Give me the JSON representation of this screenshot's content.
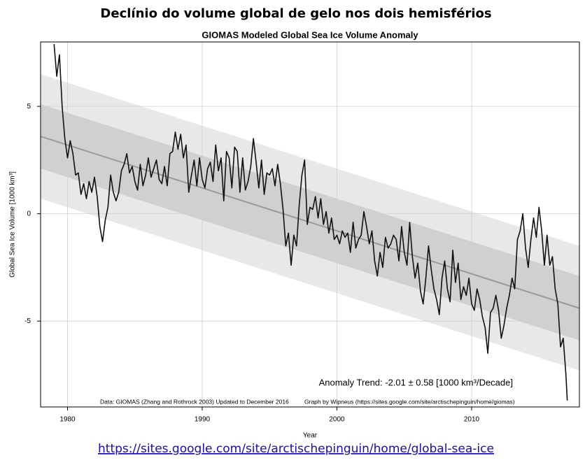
{
  "header_title": "Declínio do volume global de gelo nos dois hemisférios",
  "link": "https://sites.google.com/site/arctischepinguin/home/global-sea-ice",
  "chart_data": {
    "type": "line",
    "title": "GIOMAS Modeled Global Sea Ice Volume Anomaly",
    "xlabel": "Year",
    "ylabel": "Global Sea Ice Volume [1000 km³]",
    "annotation": "Anomaly Trend: -2.01 ± 0.58 [1000 km³/Decade]",
    "notes": [
      "Data: GIOMAS (Zhang and Rothrock 2003) Updated to December 2016",
      "Graph by Wipneus (https://sites.google.com/site/arctischepinguin/home/giomas)"
    ],
    "xlim": [
      1978,
      2018
    ],
    "xticks": [
      1980,
      1990,
      2000,
      2010
    ],
    "ylim": [
      -9,
      8
    ],
    "yticks": [
      -5,
      0,
      5
    ],
    "grid": true,
    "bands": [
      {
        "x": [
          1978,
          2018
        ],
        "lower": [
          0.7,
          -7.3
        ],
        "upper": [
          6.5,
          -1.5
        ],
        "color": "#e8e8e8"
      },
      {
        "x": [
          1978,
          2018
        ],
        "lower": [
          2.1,
          -5.9
        ],
        "upper": [
          5.1,
          -2.9
        ],
        "color": "#d0d0d0"
      }
    ],
    "trend": {
      "x": [
        1978,
        2018
      ],
      "values": [
        3.6,
        -4.4
      ],
      "color": "#9a9a9a"
    },
    "x": [
      1979.0,
      1979.2,
      1979.4,
      1979.6,
      1979.8,
      1980.0,
      1980.2,
      1980.4,
      1980.6,
      1980.8,
      1981.0,
      1981.2,
      1981.4,
      1981.6,
      1981.8,
      1982.0,
      1982.2,
      1982.4,
      1982.6,
      1982.8,
      1983.0,
      1983.2,
      1983.4,
      1983.6,
      1983.8,
      1984.0,
      1984.2,
      1984.4,
      1984.6,
      1984.8,
      1985.0,
      1985.2,
      1985.4,
      1985.6,
      1985.8,
      1986.0,
      1986.2,
      1986.4,
      1986.6,
      1986.8,
      1987.0,
      1987.2,
      1987.4,
      1987.6,
      1987.8,
      1988.0,
      1988.2,
      1988.4,
      1988.6,
      1988.8,
      1989.0,
      1989.2,
      1989.4,
      1989.6,
      1989.8,
      1990.0,
      1990.2,
      1990.4,
      1990.6,
      1990.8,
      1991.0,
      1991.2,
      1991.4,
      1991.6,
      1991.8,
      1992.0,
      1992.2,
      1992.4,
      1992.6,
      1992.8,
      1993.0,
      1993.2,
      1993.4,
      1993.6,
      1993.8,
      1994.0,
      1994.2,
      1994.4,
      1994.6,
      1994.8,
      1995.0,
      1995.2,
      1995.4,
      1995.6,
      1995.8,
      1996.0,
      1996.2,
      1996.4,
      1996.6,
      1996.8,
      1997.0,
      1997.2,
      1997.4,
      1997.6,
      1997.8,
      1998.0,
      1998.2,
      1998.4,
      1998.6,
      1998.8,
      1999.0,
      1999.2,
      1999.4,
      1999.6,
      1999.8,
      2000.0,
      2000.2,
      2000.4,
      2000.6,
      2000.8,
      2001.0,
      2001.2,
      2001.4,
      2001.6,
      2001.8,
      2002.0,
      2002.2,
      2002.4,
      2002.6,
      2002.8,
      2003.0,
      2003.2,
      2003.4,
      2003.6,
      2003.8,
      2004.0,
      2004.2,
      2004.4,
      2004.6,
      2004.8,
      2005.0,
      2005.2,
      2005.4,
      2005.6,
      2005.8,
      2006.0,
      2006.2,
      2006.4,
      2006.6,
      2006.8,
      2007.0,
      2007.2,
      2007.4,
      2007.6,
      2007.8,
      2008.0,
      2008.2,
      2008.4,
      2008.6,
      2008.8,
      2009.0,
      2009.2,
      2009.4,
      2009.6,
      2009.8,
      2010.0,
      2010.2,
      2010.4,
      2010.6,
      2010.8,
      2011.0,
      2011.2,
      2011.4,
      2011.6,
      2011.8,
      2012.0,
      2012.2,
      2012.4,
      2012.6,
      2012.8,
      2013.0,
      2013.2,
      2013.4,
      2013.6,
      2013.8,
      2014.0,
      2014.2,
      2014.4,
      2014.6,
      2014.8,
      2015.0,
      2015.2,
      2015.4,
      2015.6,
      2015.8,
      2016.0,
      2016.2,
      2016.4,
      2016.6,
      2016.8,
      2017.0,
      2017.1
    ],
    "series": [
      {
        "name": "Global Sea Ice Volume Anomaly",
        "color": "#111111",
        "values": [
          7.9,
          6.4,
          7.4,
          5.0,
          3.5,
          2.6,
          3.4,
          2.8,
          1.8,
          1.9,
          0.9,
          1.4,
          0.7,
          1.5,
          1.0,
          1.7,
          0.8,
          -0.6,
          -1.3,
          -0.3,
          0.3,
          1.8,
          1.0,
          0.6,
          1.0,
          2.0,
          2.3,
          2.8,
          1.9,
          2.2,
          1.5,
          1.1,
          2.3,
          1.3,
          1.8,
          2.6,
          1.7,
          2.1,
          2.5,
          1.6,
          1.4,
          2.2,
          1.3,
          2.8,
          2.9,
          3.8,
          3.0,
          3.7,
          2.6,
          3.2,
          1.0,
          1.8,
          2.5,
          1.3,
          2.6,
          1.6,
          1.2,
          2.1,
          2.4,
          1.5,
          3.2,
          2.0,
          2.6,
          0.6,
          2.9,
          2.6,
          1.2,
          3.1,
          2.9,
          1.0,
          2.6,
          1.1,
          1.5,
          2.2,
          3.5,
          2.4,
          1.2,
          2.5,
          0.9,
          1.9,
          1.8,
          2.1,
          1.3,
          2.3,
          1.4,
          0.2,
          -1.5,
          -0.9,
          -2.4,
          -1.0,
          -1.5,
          0.4,
          1.8,
          2.5,
          -0.5,
          0.3,
          0.2,
          0.8,
          -0.2,
          0.7,
          -0.5,
          0.1,
          -0.9,
          -0.2,
          -1.2,
          -1.0,
          -1.4,
          -0.8,
          -1.1,
          -0.9,
          -1.8,
          -0.4,
          -1.6,
          -1.2,
          -1.0,
          0.1,
          -0.6,
          -1.4,
          -0.8,
          -2.2,
          -2.9,
          -1.8,
          -2.5,
          -1.1,
          -1.6,
          -1.4,
          -1.0,
          -1.2,
          -2.2,
          -0.6,
          -1.8,
          -2.4,
          -0.4,
          -2.0,
          -3.0,
          -2.3,
          -3.6,
          -4.2,
          -3.0,
          -1.5,
          -2.6,
          -3.5,
          -4.0,
          -4.7,
          -3.0,
          -2.2,
          -3.5,
          -4.1,
          -1.7,
          -3.2,
          -2.3,
          -4.0,
          -3.4,
          -3.8,
          -3.0,
          -4.2,
          -4.5,
          -3.5,
          -4.0,
          -4.8,
          -5.3,
          -6.5,
          -4.6,
          -4.4,
          -3.8,
          -4.5,
          -5.8,
          -5.2,
          -4.4,
          -3.8,
          -3.0,
          -3.5,
          -1.2,
          -0.8,
          0.0,
          -1.6,
          -2.5,
          -1.2,
          -0.2,
          -1.1,
          0.3,
          -0.8,
          -2.4,
          -1.0,
          -2.4,
          -2.0,
          -3.5,
          -4.2,
          -6.2,
          -5.8,
          -7.5,
          -8.7
        ]
      }
    ]
  }
}
